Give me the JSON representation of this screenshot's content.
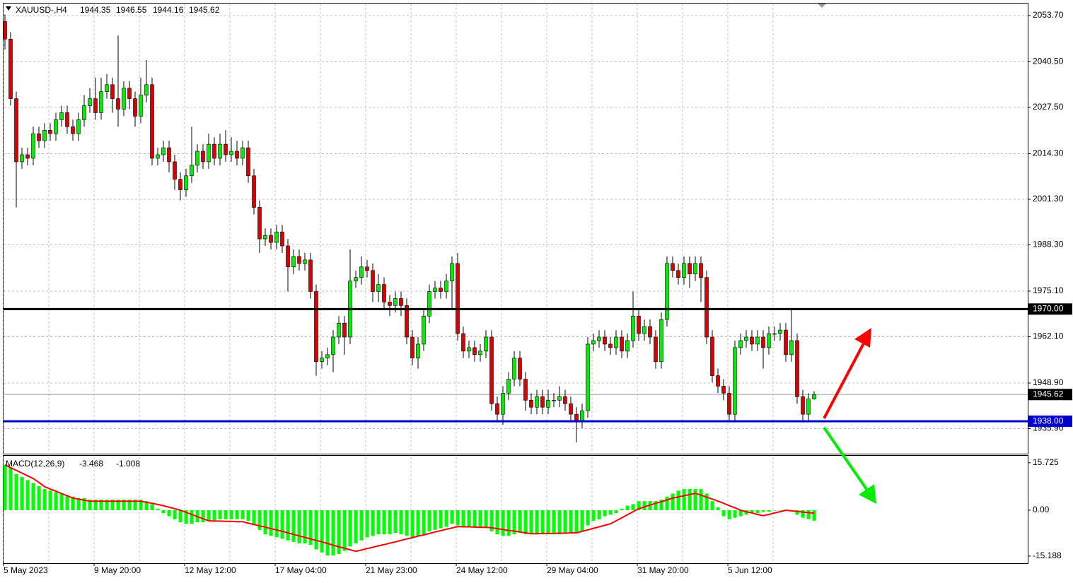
{
  "chart_data": [
    {
      "type": "candlestick",
      "symbol": "XAUUSD-,H4",
      "up_color": "#00ee00",
      "down_color": "#dd0000",
      "wick_color": "#000000",
      "grid": true,
      "ylim": [
        1928.75,
        2057.13
      ],
      "yticks": [
        {
          "value": 2053.7,
          "label": "2053.70"
        },
        {
          "value": 2040.5,
          "label": "2040.50"
        },
        {
          "value": 2027.5,
          "label": "2027.50"
        },
        {
          "value": 2014.3,
          "label": "2014.30"
        },
        {
          "value": 2001.3,
          "label": "2001.30"
        },
        {
          "value": 1988.3,
          "label": "1988.30"
        },
        {
          "value": 1975.1,
          "label": "1975.10"
        },
        {
          "value": 1962.1,
          "label": "1962.10"
        },
        {
          "value": 1948.9,
          "label": "1948.90"
        },
        {
          "value": 1935.9,
          "label": "1935.90"
        }
      ],
      "hlines": [
        {
          "value": 1970,
          "label": "1970.00",
          "color": "#000000"
        },
        {
          "value": 1938,
          "label": "1938.00",
          "color": "#0000cc"
        }
      ],
      "categories": [
        "5 May 2023",
        null,
        null,
        null,
        null,
        null,
        null,
        null,
        null,
        null,
        null,
        null,
        null,
        null,
        null,
        null,
        "9 May 20:00",
        null,
        null,
        null,
        null,
        null,
        null,
        null,
        null,
        null,
        null,
        null,
        null,
        null,
        null,
        null,
        "12 May 12:00",
        null,
        null,
        null,
        null,
        null,
        null,
        null,
        null,
        null,
        null,
        null,
        null,
        null,
        null,
        null,
        "17 May 04:00",
        null,
        null,
        null,
        null,
        null,
        null,
        null,
        null,
        null,
        null,
        null,
        null,
        null,
        null,
        null,
        "21 May 23:00",
        null,
        null,
        null,
        null,
        null,
        null,
        null,
        null,
        null,
        null,
        null,
        null,
        null,
        null,
        null,
        "24 May 12:00",
        null,
        null,
        null,
        null,
        null,
        null,
        null,
        null,
        null,
        null,
        null,
        null,
        null,
        null,
        null,
        "29 May 04:00",
        null,
        null,
        null,
        null,
        null,
        null,
        null,
        null,
        null,
        null,
        null,
        null,
        null,
        null,
        null,
        "31 May 20:00",
        null,
        null,
        null,
        null,
        null,
        null,
        null,
        null,
        null,
        null,
        null,
        null,
        null,
        null,
        null,
        "5 Jun 12:00",
        null,
        null,
        null,
        null,
        null,
        null,
        null,
        null,
        null,
        null,
        null,
        null,
        null,
        null,
        null
      ],
      "open": [
        2052,
        2047,
        2030,
        2012,
        2014,
        2013,
        2020,
        2018,
        2021,
        2020,
        2024,
        2026,
        2022,
        2020,
        2024,
        2028,
        2030,
        2026,
        2032,
        2034,
        2030,
        2027,
        2033,
        2030,
        2025,
        2031,
        2034,
        2013,
        2014,
        2016,
        2012,
        2007,
        2004,
        2008,
        2011,
        2015,
        2012,
        2017,
        2013,
        2017,
        2014,
        2015,
        2013,
        2016,
        2008,
        1999,
        1990,
        1991,
        1989,
        1992,
        1988,
        1982,
        1985,
        1983,
        1984,
        1975,
        1955,
        1956,
        1957,
        1962,
        1966,
        1962,
        1978,
        1979,
        1982,
        1981,
        1975,
        1977,
        1972,
        1971,
        1973,
        1971,
        1962,
        1956,
        1960,
        1968,
        1975,
        1976,
        1975,
        1978,
        1983,
        1963,
        1958,
        1959,
        1957,
        1958,
        1962,
        1943,
        1940,
        1946,
        1950,
        1956,
        1950,
        1944,
        1942,
        1945,
        1942,
        1944,
        1944,
        1945,
        1943,
        1940,
        1938,
        1941,
        1960,
        1961,
        1962,
        1960,
        1959,
        1962,
        1958,
        1961,
        1968,
        1963,
        1965,
        1962,
        1955,
        1967,
        1983,
        1981,
        1979,
        1983,
        1980,
        1983,
        1979,
        1962,
        1951,
        1948,
        1946,
        1940,
        1959,
        1961,
        1962,
        1960,
        1962,
        1959,
        1963,
        1963,
        1964,
        1957,
        1961,
        1945,
        1940,
        1944.35
      ],
      "high": [
        2054,
        2049,
        2032,
        2016,
        2016,
        2022,
        2022,
        2023,
        2023,
        2026,
        2028,
        2028,
        2024,
        2026,
        2031,
        2033,
        2036,
        2036,
        2037,
        2036,
        2048,
        2035,
        2035,
        2032,
        2036,
        2041,
        2036,
        2016,
        2018,
        2018,
        2014,
        2009,
        2010,
        2022,
        2017,
        2017,
        2020,
        2019,
        2020,
        2021,
        2019,
        2018,
        2018,
        2018,
        2010,
        2001,
        1993,
        1993,
        1994,
        1994,
        1990,
        1987,
        1987,
        1986,
        1986,
        1977,
        1958,
        1959,
        1964,
        1968,
        1968,
        1987,
        1981,
        1985,
        1984,
        1983,
        1980,
        1979,
        1974,
        1975,
        1975,
        1973,
        1964,
        1962,
        1970,
        1977,
        1978,
        1978,
        1980,
        1985,
        1986,
        1965,
        1961,
        1961,
        1960,
        1964,
        1964,
        1945,
        1948,
        1952,
        1958,
        1958,
        1952,
        1946,
        1947,
        1947,
        1947,
        1946,
        1948,
        1947,
        1945,
        1942,
        1943,
        1962,
        1963,
        1964,
        1964,
        1962,
        1964,
        1964,
        1963,
        1975,
        1970,
        1967,
        1967,
        1964,
        1969,
        1985,
        1985,
        1983,
        1985,
        1985,
        1985,
        1985,
        1981,
        1964,
        1953,
        1950,
        1948,
        1961,
        1963,
        1964,
        1964,
        1964,
        1964,
        1965,
        1965,
        1966,
        1966,
        1970,
        1963,
        1947,
        1946,
        1946.55
      ],
      "low": [
        2044,
        2028,
        1999,
        2010,
        2011,
        2011,
        2016,
        2016,
        2018,
        2018,
        2022,
        2020,
        2018,
        2018,
        2022,
        2026,
        2024,
        2024,
        2030,
        2026,
        2022,
        2025,
        2027,
        2022,
        2023,
        2029,
        2011,
        2011,
        2012,
        2009,
        2004,
        2001,
        2002,
        2006,
        2009,
        2010,
        2010,
        2011,
        2011,
        2012,
        2012,
        2011,
        2011,
        2006,
        1997,
        1986,
        1988,
        1987,
        1987,
        1986,
        1975,
        1980,
        1981,
        1981,
        1973,
        1951,
        1953,
        1954,
        1952,
        1960,
        1957,
        1960,
        1976,
        1977,
        1979,
        1972,
        1972,
        1970,
        1968,
        1969,
        1968,
        1960,
        1954,
        1953,
        1958,
        1966,
        1973,
        1973,
        1973,
        1970,
        1961,
        1956,
        1956,
        1955,
        1955,
        1956,
        1941,
        1938,
        1937,
        1944,
        1948,
        1948,
        1941,
        1940,
        1940,
        1940,
        1940,
        1942,
        1942,
        1941,
        1938,
        1932,
        1936,
        1939,
        1958,
        1959,
        1958,
        1957,
        1957,
        1956,
        1956,
        1959,
        1961,
        1961,
        1960,
        1953,
        1953,
        1965,
        1979,
        1977,
        1977,
        1976,
        1978,
        1972,
        1960,
        1949,
        1946,
        1944,
        1938,
        1938,
        1957,
        1959,
        1958,
        1958,
        1953,
        1957,
        1961,
        1961,
        1955,
        1955,
        1943,
        1938,
        1938,
        1944.16
      ],
      "close": [
        2047,
        2030,
        2012,
        2014,
        2013,
        2020,
        2018,
        2021,
        2020,
        2024,
        2026,
        2022,
        2020,
        2024,
        2028,
        2030,
        2026,
        2032,
        2034,
        2030,
        2027,
        2033,
        2030,
        2025,
        2031,
        2034,
        2013,
        2014,
        2016,
        2012,
        2007,
        2004,
        2008,
        2011,
        2015,
        2012,
        2017,
        2013,
        2017,
        2014,
        2015,
        2013,
        2016,
        2008,
        1999,
        1990,
        1991,
        1989,
        1992,
        1988,
        1982,
        1985,
        1983,
        1984,
        1975,
        1955,
        1956,
        1957,
        1962,
        1966,
        1962,
        1978,
        1979,
        1982,
        1981,
        1975,
        1977,
        1972,
        1971,
        1973,
        1971,
        1962,
        1956,
        1960,
        1968,
        1975,
        1976,
        1975,
        1978,
        1983,
        1963,
        1958,
        1959,
        1957,
        1958,
        1962,
        1943,
        1940,
        1946,
        1950,
        1956,
        1950,
        1944,
        1942,
        1945,
        1942,
        1944,
        1944,
        1945,
        1943,
        1940,
        1938,
        1941,
        1960,
        1961,
        1962,
        1960,
        1959,
        1962,
        1958,
        1961,
        1968,
        1963,
        1965,
        1962,
        1955,
        1967,
        1983,
        1981,
        1979,
        1983,
        1980,
        1983,
        1979,
        1962,
        1951,
        1948,
        1946,
        1940,
        1959,
        1961,
        1962,
        1960,
        1962,
        1959,
        1963,
        1963,
        1964,
        1957,
        1961,
        1945,
        1940,
        1944.35,
        1945.62
      ]
    },
    {
      "type": "macd",
      "label": "MACD(12,26,9)",
      "histogram_color": "#00ff00",
      "signal_color": "#ff0000",
      "ylim": [
        -17.56,
        18.03
      ],
      "yticks": [
        15.725,
        {
          "value": 0,
          "label": "0.00"
        },
        -15.188
      ],
      "histogram": [
        15,
        14,
        12,
        11,
        10,
        9,
        8,
        7,
        6.5,
        6,
        5.5,
        5,
        4.5,
        4,
        4,
        3.5,
        3.5,
        3.5,
        3.5,
        3.5,
        3.5,
        3.5,
        3.5,
        3.5,
        3.5,
        3,
        2,
        0.5,
        -1,
        -2,
        -3,
        -4,
        -4.5,
        -4.5,
        -4,
        -4,
        -3.5,
        -3.5,
        -3,
        -3,
        -3,
        -3,
        -3,
        -3.5,
        -5,
        -6.5,
        -8,
        -8.5,
        -9,
        -9.5,
        -10,
        -10.5,
        -11,
        -11,
        -11.5,
        -13,
        -14,
        -15,
        -15,
        -14.5,
        -13.5,
        -12,
        -11,
        -10,
        -9,
        -8.5,
        -8,
        -8,
        -8,
        -7.5,
        -8,
        -8.5,
        -9,
        -8.5,
        -8,
        -7,
        -6.5,
        -6,
        -5.5,
        -4.5,
        -5,
        -5.5,
        -5.5,
        -5.5,
        -5.5,
        -5.5,
        -7,
        -8,
        -8.5,
        -8.5,
        -8,
        -7.5,
        -8,
        -8,
        -8,
        -8,
        -8,
        -8,
        -8,
        -7.5,
        -7.5,
        -7.5,
        -7,
        -5,
        -3.5,
        -3,
        -2,
        -1.5,
        -1,
        0.5,
        1.5,
        2,
        3,
        3,
        3,
        3,
        3.5,
        4.5,
        5.5,
        6.5,
        7,
        7,
        7,
        7,
        5.5,
        3,
        1,
        -2,
        -3,
        -2.5,
        -2,
        -1.5,
        -1,
        -1,
        -0.5,
        -0.5,
        0,
        0,
        0,
        0,
        -1.5,
        -2.5,
        -3,
        -3.468
      ],
      "signal": [
        15,
        14.1,
        13.2,
        12.3,
        11.4,
        10.5,
        9.2,
        7.8,
        7,
        6.3,
        5.5,
        4.8,
        4,
        3.7,
        3.3,
        3,
        3,
        3,
        3,
        3,
        3,
        3,
        3,
        3,
        3,
        2.6,
        2.3,
        1.9,
        1.5,
        1,
        0.5,
        0,
        -0.7,
        -1.4,
        -2.1,
        -2.8,
        -3.5,
        -3.6,
        -3.6,
        -3.7,
        -3.7,
        -3.8,
        -3.8,
        -4.3,
        -4.7,
        -5.2,
        -5.6,
        -6.1,
        -6.5,
        -7,
        -7.5,
        -8,
        -8.5,
        -9,
        -9.5,
        -10,
        -10.5,
        -11,
        -11.6,
        -12.1,
        -12.6,
        -13.1,
        -13.6,
        -13.2,
        -12.7,
        -12.3,
        -11.8,
        -11.4,
        -10.9,
        -10.5,
        -10,
        -9.5,
        -9.1,
        -8.6,
        -8.2,
        -7.7,
        -7.2,
        -6.8,
        -6.3,
        -5.9,
        -5.4,
        -5.5,
        -5.5,
        -5.6,
        -5.7,
        -5.7,
        -5.8,
        -6.1,
        -6.4,
        -6.7,
        -6.9,
        -7.2,
        -7.5,
        -7.8,
        -7.8,
        -7.7,
        -7.7,
        -7.7,
        -7.6,
        -7.6,
        -7.5,
        -7.5,
        -7,
        -6.5,
        -6,
        -5.5,
        -5,
        -4.5,
        -3.5,
        -2.5,
        -1.5,
        -0.5,
        0.5,
        1.1,
        1.7,
        2.3,
        2.8,
        3.4,
        4,
        4.4,
        4.8,
        5.2,
        5.6,
        5,
        4.3,
        3.7,
        3,
        2.3,
        1.5,
        0.8,
        0,
        -0.5,
        -0.9,
        -1.4,
        -1.8,
        -1.4,
        -0.9,
        -0.5,
        0,
        -0.2,
        -0.4,
        -0.6,
        -0.8,
        -1.008
      ]
    }
  ]
}
